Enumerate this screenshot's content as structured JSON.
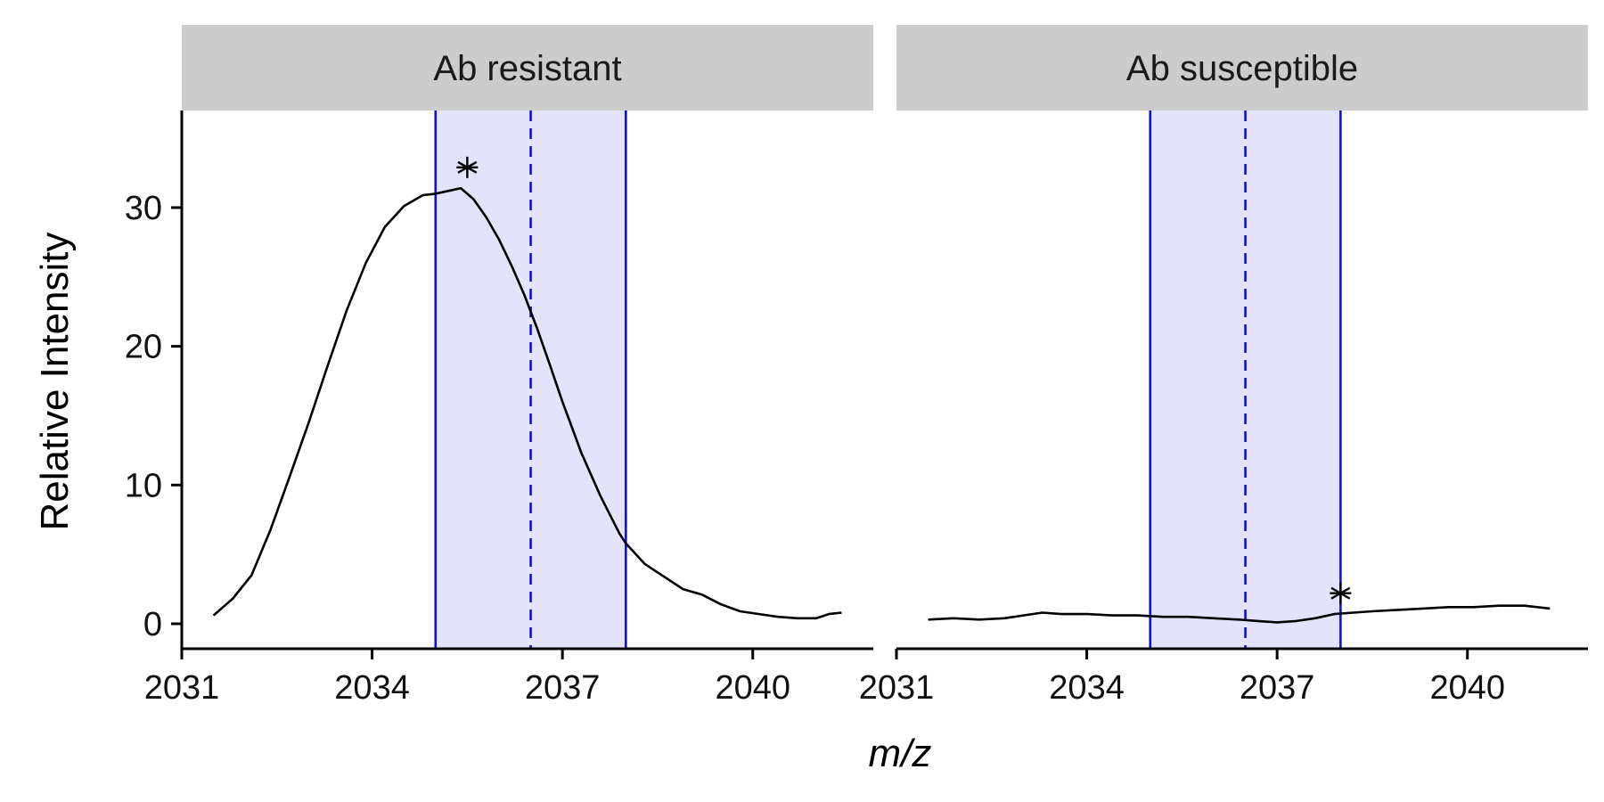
{
  "chart_data": {
    "type": "line",
    "xlabel": "m/z",
    "ylabel": "Relative Intensity",
    "xlim": [
      2031,
      2041.9
    ],
    "ylim": [
      -1.8,
      37
    ],
    "x_ticks": [
      2031,
      2034,
      2037,
      2040
    ],
    "y_ticks": [
      0,
      10,
      20,
      30
    ],
    "window": {
      "start": 2035,
      "center": 2036.5,
      "end": 2038
    },
    "panels": [
      {
        "title": "Ab resistant",
        "series": [
          {
            "x": [
              2031.5,
              2031.8,
              2032.1,
              2032.4,
              2032.7,
              2033.0,
              2033.3,
              2033.6,
              2033.9,
              2034.2,
              2034.5,
              2034.8,
              2035.0,
              2035.2,
              2035.4,
              2035.6,
              2035.8,
              2036.0,
              2036.2,
              2036.4,
              2036.6,
              2036.8,
              2037.0,
              2037.3,
              2037.6,
              2037.9,
              2038.0,
              2038.3,
              2038.6,
              2038.9,
              2039.2,
              2039.5,
              2039.8,
              2040.1,
              2040.4,
              2040.7,
              2041.0,
              2041.2,
              2041.4
            ],
            "y": [
              0.6,
              1.8,
              3.5,
              6.8,
              10.6,
              14.5,
              18.6,
              22.6,
              26.0,
              28.6,
              30.1,
              30.9,
              31.0,
              31.2,
              31.4,
              30.6,
              29.3,
              27.7,
              25.8,
              23.7,
              21.3,
              18.7,
              16.0,
              12.3,
              9.2,
              6.5,
              5.8,
              4.3,
              3.4,
              2.5,
              2.1,
              1.4,
              0.9,
              0.7,
              0.5,
              0.4,
              0.4,
              0.7,
              0.8
            ]
          }
        ],
        "peak": {
          "x": 2035.5,
          "y": 32.9
        }
      },
      {
        "title": "Ab susceptible",
        "series": [
          {
            "x": [
              2031.5,
              2031.9,
              2032.3,
              2032.7,
              2033.0,
              2033.3,
              2033.6,
              2034.0,
              2034.4,
              2034.8,
              2035.2,
              2035.6,
              2036.0,
              2036.4,
              2036.7,
              2037.0,
              2037.3,
              2037.6,
              2037.9,
              2038.2,
              2038.5,
              2038.9,
              2039.3,
              2039.7,
              2040.1,
              2040.5,
              2040.9,
              2041.3
            ],
            "y": [
              0.3,
              0.4,
              0.3,
              0.4,
              0.6,
              0.8,
              0.7,
              0.7,
              0.6,
              0.6,
              0.5,
              0.5,
              0.4,
              0.3,
              0.2,
              0.1,
              0.2,
              0.4,
              0.7,
              0.8,
              0.9,
              1.0,
              1.1,
              1.2,
              1.2,
              1.3,
              1.3,
              1.1
            ]
          }
        ],
        "peak": {
          "x": 2038.0,
          "y": 2.2
        }
      }
    ]
  }
}
